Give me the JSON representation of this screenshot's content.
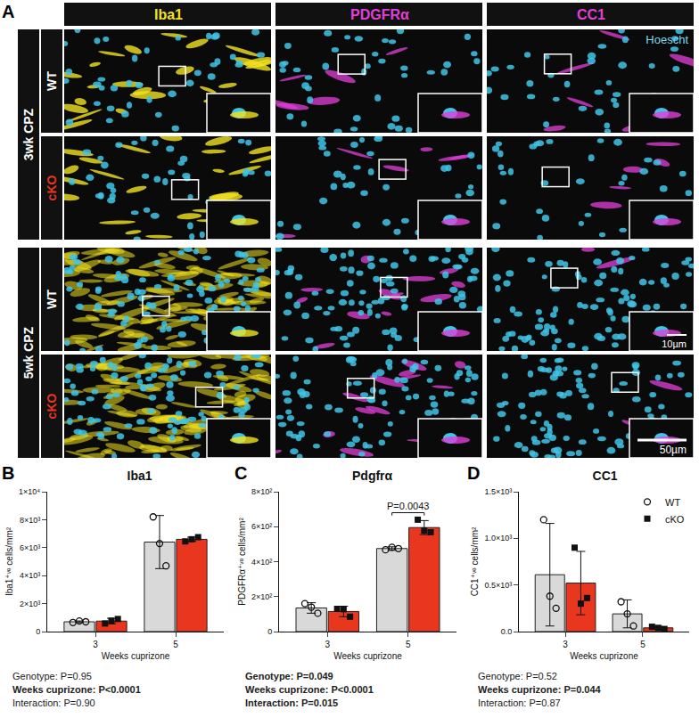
{
  "figure": {
    "panel_a": {
      "label": "A",
      "columns": [
        {
          "text": "Iba1",
          "color": "#f3e21f"
        },
        {
          "text": "PDGFRα",
          "color": "#e23fd9"
        },
        {
          "text": "CC1",
          "color": "#e23fd9"
        }
      ],
      "groups": [
        {
          "label": "3wk CPZ",
          "rows": [
            {
              "text": "WT",
              "color": "#ffffff"
            },
            {
              "text": "cKO",
              "color": "#e8361f"
            }
          ]
        },
        {
          "label": "5wk CPZ",
          "rows": [
            {
              "text": "WT",
              "color": "#ffffff"
            },
            {
              "text": "cKO",
              "color": "#e8361f"
            }
          ]
        }
      ],
      "stain_label": {
        "text": "Hoescht",
        "color": "#7fd6ee"
      },
      "scale_bars": [
        "10µm",
        "50µm"
      ]
    }
  },
  "chart_data": [
    {
      "type": "bar",
      "panel": "B",
      "title": "Iba1",
      "categories": [
        "3",
        "5"
      ],
      "xlabel": "Weeks cuprizone",
      "ylabel": "Iba1⁺ᵛᵉ cells/mm²",
      "ylim": [
        0,
        10000
      ],
      "yticks": [
        0,
        {
          "value": 2000,
          "label": "2×10³"
        },
        {
          "value": 4000,
          "label": "4×10³"
        },
        {
          "value": 6000,
          "label": "6×10³"
        },
        {
          "value": 8000,
          "label": "8×10³"
        },
        {
          "value": 10000,
          "label": "1×10⁴"
        }
      ],
      "series": [
        {
          "name": "WT",
          "color": "#d9d9d9",
          "marker": "circle-open",
          "values": [
            700,
            6400
          ],
          "error": [
            60,
            1900
          ],
          "points": [
            [
              650,
              760,
              700
            ],
            [
              8200,
              6300,
              4700
            ]
          ]
        },
        {
          "name": "cKO",
          "color": "#e8361f",
          "marker": "square",
          "values": [
            750,
            6600
          ],
          "error": [
            200,
            150
          ],
          "points": [
            [
              580,
              780,
              900
            ],
            [
              6450,
              6600,
              6750
            ]
          ]
        }
      ],
      "stats": [
        {
          "text": "Genotype: P=0.95",
          "bold": false
        },
        {
          "text": "Weeks cuprizone: P<0.0001",
          "bold": true
        },
        {
          "text": "Interaction: P=0.90",
          "bold": false
        }
      ]
    },
    {
      "type": "bar",
      "panel": "C",
      "title": "Pdgfrα",
      "categories": [
        "3",
        "5"
      ],
      "xlabel": "Weeks cuprizone",
      "ylabel": "PDGFRα⁺ᵛᵉ cells/mm²",
      "ylim": [
        0,
        800
      ],
      "yticks": [
        0,
        {
          "value": 200,
          "label": "2×10²"
        },
        {
          "value": 400,
          "label": "4×10²"
        },
        {
          "value": 600,
          "label": "6×10²"
        },
        {
          "value": 800,
          "label": "8×10²"
        }
      ],
      "series": [
        {
          "name": "WT",
          "color": "#d9d9d9",
          "marker": "circle-open",
          "values": [
            135,
            475
          ],
          "error": [
            30,
            10
          ],
          "points": [
            [
              160,
              140,
              105
            ],
            [
              468,
              482,
              475
            ]
          ]
        },
        {
          "name": "cKO",
          "color": "#e8361f",
          "marker": "square",
          "values": [
            115,
            595
          ],
          "error": [
            30,
            40
          ],
          "points": [
            [
              130,
              128,
              85
            ],
            [
              640,
              578,
              568
            ]
          ]
        }
      ],
      "annotations": [
        {
          "text": "P=0.0043",
          "category": "5",
          "series": [
            "WT",
            "cKO"
          ]
        }
      ],
      "stats": [
        {
          "text": "Genotype: P=0.049",
          "bold": true
        },
        {
          "text": "Weeks cuprizone: P<0.0001",
          "bold": true
        },
        {
          "text": "Interaction: P=0.015",
          "bold": true
        }
      ]
    },
    {
      "type": "bar",
      "panel": "D",
      "title": "CC1",
      "categories": [
        "3",
        "5"
      ],
      "xlabel": "Weeks cuprizone",
      "ylabel": "CC1⁺ᵛᵉ cells/mm²",
      "ylim": [
        0,
        1500
      ],
      "yticks": [
        {
          "value": 0,
          "label": "0.0"
        },
        {
          "value": 500,
          "label": "0.5×10³"
        },
        {
          "value": 1000,
          "label": "1.0×10³"
        },
        {
          "value": 1500,
          "label": "1.5×10³"
        }
      ],
      "legend": "top right",
      "series": [
        {
          "name": "WT",
          "color": "#d9d9d9",
          "marker": "circle-open",
          "values": [
            610,
            190
          ],
          "error": [
            550,
            150
          ],
          "points": [
            [
              1200,
              380,
              250
            ],
            [
              320,
              190,
              60
            ]
          ]
        },
        {
          "name": "cKO",
          "color": "#e8361f",
          "marker": "square",
          "values": [
            520,
            40
          ],
          "error": [
            340,
            15
          ],
          "points": [
            [
              900,
              300,
              360
            ],
            [
              52,
              40,
              28
            ]
          ]
        }
      ],
      "stats": [
        {
          "text": "Genotype: P=0.52",
          "bold": false
        },
        {
          "text": "Weeks cuprizone: P=0.044",
          "bold": true
        },
        {
          "text": "Interaction: P=0.87",
          "bold": false
        }
      ]
    }
  ]
}
